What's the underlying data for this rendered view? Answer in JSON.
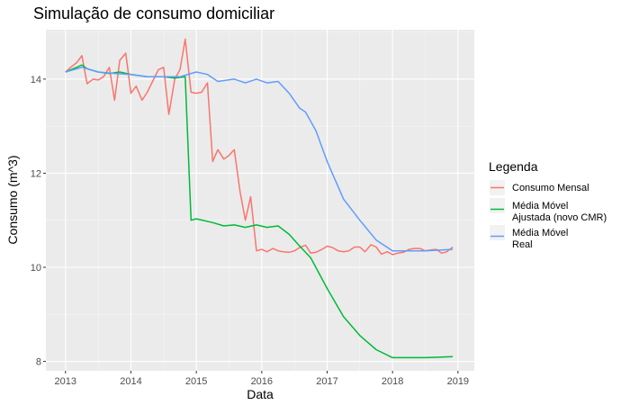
{
  "chart_data": {
    "type": "line",
    "title": "Simulação de consumo domiciliar",
    "xlabel": "Data",
    "ylabel": "Consumo (m^3)",
    "xlim": [
      2012.7,
      2019.25
    ],
    "ylim": [
      7.8,
      15.05
    ],
    "x_ticks": [
      2013,
      2014,
      2015,
      2016,
      2017,
      2018,
      2019
    ],
    "y_ticks": [
      8,
      10,
      12,
      14
    ],
    "grid": true,
    "legend": {
      "title": "Legenda",
      "position": "right",
      "entries": [
        {
          "label_lines": [
            "Consumo Mensal"
          ],
          "color": "#F8766D"
        },
        {
          "label_lines": [
            "Média Móvel",
            "Ajustada (novo CMR)"
          ],
          "color": "#00BA38"
        },
        {
          "label_lines": [
            "Média Móvel",
            "Real"
          ],
          "color": "#619CFF"
        }
      ]
    },
    "series": [
      {
        "name": "Consumo Mensal",
        "color": "#F8766D",
        "x": [
          2013.0,
          2013.08,
          2013.17,
          2013.25,
          2013.33,
          2013.42,
          2013.5,
          2013.58,
          2013.67,
          2013.75,
          2013.83,
          2013.92,
          2014.0,
          2014.08,
          2014.17,
          2014.25,
          2014.33,
          2014.42,
          2014.5,
          2014.58,
          2014.67,
          2014.75,
          2014.83,
          2014.92,
          2015.0,
          2015.08,
          2015.17,
          2015.25,
          2015.33,
          2015.42,
          2015.5,
          2015.58,
          2015.67,
          2015.75,
          2015.83,
          2015.92,
          2016.0,
          2016.08,
          2016.17,
          2016.25,
          2016.33,
          2016.42,
          2016.5,
          2016.58,
          2016.67,
          2016.75,
          2016.83,
          2016.92,
          2017.0,
          2017.08,
          2017.17,
          2017.25,
          2017.33,
          2017.42,
          2017.5,
          2017.58,
          2017.67,
          2017.75,
          2017.83,
          2017.92,
          2018.0,
          2018.08,
          2018.17,
          2018.25,
          2018.33,
          2018.42,
          2018.5,
          2018.58,
          2018.67,
          2018.75,
          2018.83,
          2018.92
        ],
        "y": [
          14.15,
          14.25,
          14.35,
          14.5,
          13.9,
          14.0,
          13.98,
          14.05,
          14.25,
          13.55,
          14.4,
          14.55,
          13.7,
          13.85,
          13.55,
          13.72,
          13.95,
          14.2,
          14.25,
          13.25,
          14.0,
          14.2,
          14.85,
          13.72,
          13.7,
          13.72,
          13.92,
          12.25,
          12.5,
          12.3,
          12.38,
          12.5,
          11.6,
          11.0,
          11.5,
          10.35,
          10.38,
          10.33,
          10.4,
          10.35,
          10.33,
          10.32,
          10.35,
          10.42,
          10.47,
          10.3,
          10.32,
          10.38,
          10.45,
          10.42,
          10.35,
          10.33,
          10.35,
          10.43,
          10.43,
          10.33,
          10.48,
          10.43,
          10.28,
          10.33,
          10.27,
          10.3,
          10.32,
          10.38,
          10.4,
          10.4,
          10.35,
          10.37,
          10.38,
          10.3,
          10.33,
          10.43
        ]
      },
      {
        "name": "Média Móvel Ajustada (novo CMR)",
        "color": "#00BA38",
        "x": [
          2013.0,
          2013.17,
          2013.25,
          2013.33,
          2013.5,
          2013.67,
          2013.83,
          2014.0,
          2014.25,
          2014.5,
          2014.67,
          2014.83,
          2014.92,
          2015.0,
          2015.25,
          2015.42,
          2015.58,
          2015.75,
          2015.92,
          2016.08,
          2016.25,
          2016.42,
          2016.58,
          2016.75,
          2017.0,
          2017.25,
          2017.5,
          2017.75,
          2018.0,
          2018.25,
          2018.5,
          2018.75,
          2018.92
        ],
        "y": [
          14.15,
          14.25,
          14.3,
          14.22,
          14.15,
          14.12,
          14.15,
          14.1,
          14.05,
          14.05,
          14.02,
          14.05,
          11.0,
          11.03,
          10.95,
          10.88,
          10.9,
          10.85,
          10.9,
          10.85,
          10.88,
          10.7,
          10.45,
          10.2,
          9.55,
          8.95,
          8.55,
          8.25,
          8.08,
          8.08,
          8.08,
          8.09,
          8.1
        ]
      },
      {
        "name": "Média Móvel Real",
        "color": "#619CFF",
        "x": [
          2013.0,
          2013.25,
          2013.5,
          2013.75,
          2014.0,
          2014.25,
          2014.5,
          2014.75,
          2014.92,
          2015.0,
          2015.17,
          2015.33,
          2015.58,
          2015.75,
          2015.92,
          2016.08,
          2016.25,
          2016.42,
          2016.58,
          2016.67,
          2016.83,
          2017.0,
          2017.25,
          2017.5,
          2017.75,
          2018.0,
          2018.25,
          2018.5,
          2018.75,
          2018.92
        ],
        "y": [
          14.15,
          14.25,
          14.15,
          14.12,
          14.1,
          14.05,
          14.05,
          14.05,
          14.12,
          14.15,
          14.1,
          13.95,
          14.0,
          13.92,
          14.0,
          13.92,
          13.95,
          13.7,
          13.38,
          13.3,
          12.9,
          12.25,
          11.45,
          11.0,
          10.58,
          10.35,
          10.35,
          10.35,
          10.37,
          10.38
        ]
      }
    ]
  }
}
